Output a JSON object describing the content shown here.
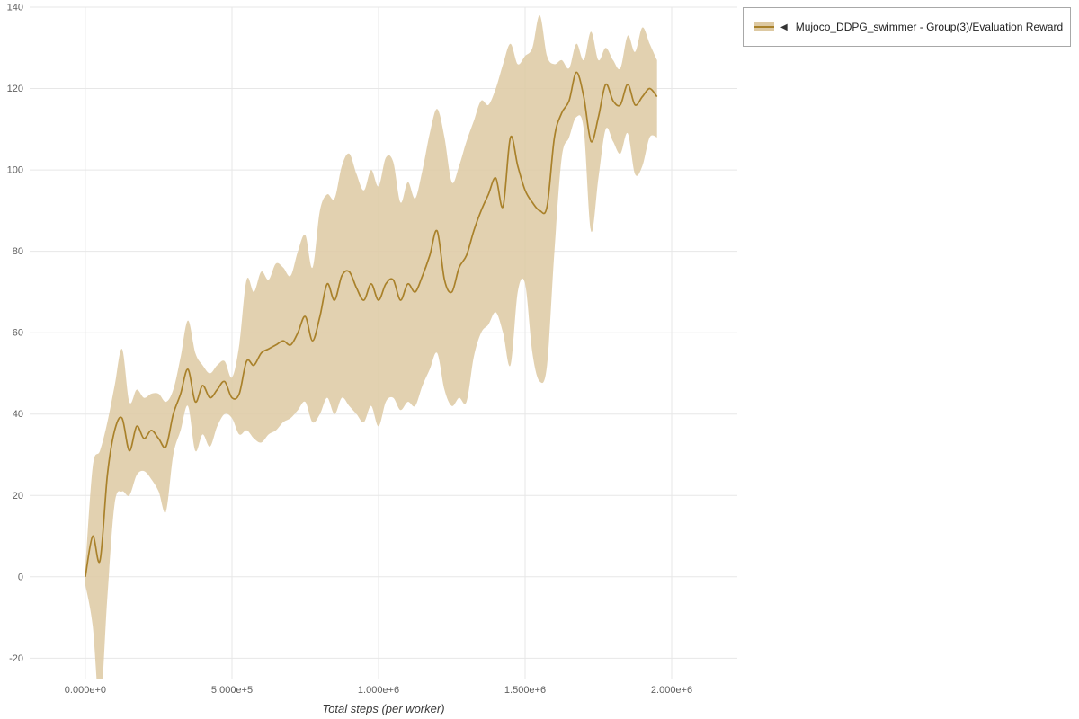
{
  "legend": {
    "collapse_icon": "◀",
    "label": "Mujoco_DDPG_swimmer - Group(3)/Evaluation Reward"
  },
  "chart_data": {
    "type": "line",
    "xlabel": "Total steps (per worker)",
    "grid": true,
    "legend_position": "top-right",
    "xlim": [
      -190000,
      2224000
    ],
    "ylim": [
      -25,
      140
    ],
    "x_ticks": [
      {
        "value": 0,
        "label": "0.000e+0"
      },
      {
        "value": 500000,
        "label": "5.000e+5"
      },
      {
        "value": 1000000,
        "label": "1.000e+6"
      },
      {
        "value": 1500000,
        "label": "1.500e+6"
      },
      {
        "value": 2000000,
        "label": "2.000e+6"
      }
    ],
    "y_ticks": [
      -20,
      0,
      20,
      40,
      60,
      80,
      100,
      120,
      140
    ],
    "colors": {
      "line": "#a9812a",
      "band": "#ddc9a2",
      "grid": "#e7e7e7",
      "tick_text": "#606060",
      "axis_label": "#3a3a3a"
    },
    "series": [
      {
        "name": "Mujoco_DDPG_swimmer - Group(3)/Evaluation Reward",
        "x": [
          0,
          25000,
          50000,
          75000,
          100000,
          125000,
          150000,
          175000,
          200000,
          225000,
          250000,
          275000,
          300000,
          325000,
          350000,
          375000,
          400000,
          425000,
          450000,
          475000,
          500000,
          525000,
          550000,
          575000,
          600000,
          625000,
          650000,
          675000,
          700000,
          725000,
          750000,
          775000,
          800000,
          825000,
          850000,
          875000,
          900000,
          925000,
          950000,
          975000,
          1000000,
          1025000,
          1050000,
          1075000,
          1100000,
          1125000,
          1150000,
          1175000,
          1200000,
          1225000,
          1250000,
          1275000,
          1300000,
          1325000,
          1350000,
          1375000,
          1400000,
          1425000,
          1450000,
          1475000,
          1500000,
          1525000,
          1550000,
          1575000,
          1600000,
          1625000,
          1650000,
          1675000,
          1700000,
          1725000,
          1750000,
          1775000,
          1800000,
          1825000,
          1850000,
          1875000,
          1900000,
          1925000,
          1950000
        ],
        "mean": [
          0,
          10,
          4,
          25,
          36,
          39,
          31,
          37,
          34,
          36,
          34,
          32,
          40,
          45,
          51,
          43,
          47,
          44,
          46,
          48,
          44,
          45,
          53,
          52,
          55,
          56,
          57,
          58,
          57,
          60,
          64,
          58,
          64,
          72,
          68,
          74,
          75,
          71,
          68,
          72,
          68,
          72,
          73,
          68,
          72,
          70,
          74,
          79,
          85,
          73,
          70,
          76,
          79,
          85,
          90,
          94,
          98,
          91,
          108,
          101,
          95,
          92,
          90,
          91,
          108,
          114,
          117,
          124,
          118,
          107,
          113,
          121,
          117,
          116,
          121,
          116,
          118,
          120,
          118
        ],
        "band_low": [
          -2,
          -12,
          -32,
          -5,
          18,
          21,
          20,
          25,
          26,
          24,
          21,
          16,
          30,
          36,
          42,
          31,
          35,
          32,
          37,
          40,
          39,
          35,
          36,
          34,
          33,
          35,
          36,
          38,
          39,
          41,
          43,
          38,
          40,
          44,
          40,
          44,
          42,
          40,
          38,
          42,
          37,
          43,
          44,
          41,
          43,
          42,
          47,
          51,
          55,
          46,
          42,
          44,
          43,
          54,
          60,
          62,
          65,
          60,
          52,
          70,
          72,
          55,
          48,
          52,
          80,
          103,
          108,
          113,
          110,
          85,
          98,
          110,
          107,
          104,
          109,
          99,
          101,
          108,
          108
        ],
        "band_high": [
          2,
          27,
          31,
          38,
          47,
          56,
          43,
          46,
          44,
          45,
          45,
          43,
          46,
          54,
          63,
          55,
          52,
          50,
          52,
          53,
          49,
          57,
          73,
          70,
          75,
          73,
          77,
          76,
          74,
          80,
          84,
          76,
          90,
          94,
          93,
          101,
          104,
          99,
          95,
          100,
          96,
          103,
          102,
          92,
          97,
          93,
          100,
          109,
          115,
          108,
          97,
          101,
          107,
          112,
          117,
          116,
          120,
          126,
          131,
          126,
          128,
          130,
          138,
          128,
          126,
          127,
          125,
          131,
          127,
          134,
          127,
          130,
          127,
          125,
          133,
          129,
          135,
          131,
          127
        ]
      }
    ]
  }
}
